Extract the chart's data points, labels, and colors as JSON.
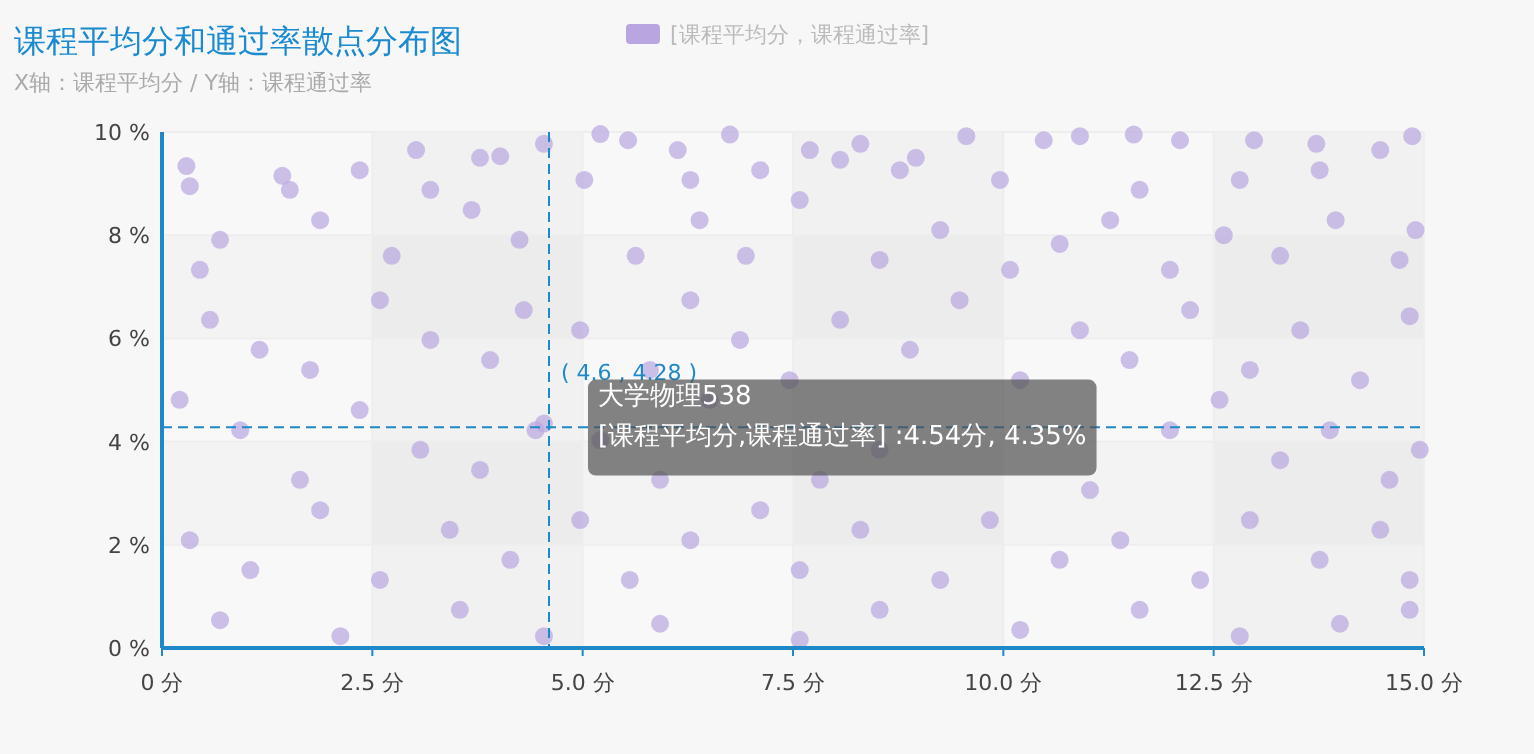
{
  "chart_data": {
    "type": "scatter",
    "title": "课程平均分和通过率散点分布图",
    "subtitle": "X轴：课程平均分 / Y轴：课程通过率",
    "xlim": [
      0,
      15
    ],
    "ylim": [
      0,
      10
    ],
    "xticks": [
      {
        "value": 0,
        "label": "0 分"
      },
      {
        "value": 2.5,
        "label": "2.5 分"
      },
      {
        "value": 5,
        "label": "5.0 分"
      },
      {
        "value": 7.5,
        "label": "7.5 分"
      },
      {
        "value": 10,
        "label": "10.0 分"
      },
      {
        "value": 12.5,
        "label": "12.5 分"
      },
      {
        "value": 15,
        "label": "15.0 分"
      }
    ],
    "yticks": [
      {
        "value": 0,
        "label": "0 %"
      },
      {
        "value": 2,
        "label": "2 %"
      },
      {
        "value": 4,
        "label": "4 %"
      },
      {
        "value": 6,
        "label": "6 %"
      },
      {
        "value": 8,
        "label": "8 %"
      },
      {
        "value": 10,
        "label": "10 %"
      }
    ],
    "grid": true,
    "legend": "top",
    "marker": "circle",
    "ref_lines": [
      {
        "axis": "x",
        "value": 4.6,
        "label": "( 4.6 , 4.28 )",
        "color": "#1e88c8",
        "line_style": "dashed"
      },
      {
        "axis": "y",
        "value": 4.28,
        "label": null,
        "color": "#1e88c8",
        "line_style": "dashed"
      }
    ],
    "annotations": [
      {
        "text": "大学物理538",
        "x": 4.54,
        "y": 4.35
      },
      {
        "text": "[课程平均分,课程通过率] :4.54分, 4.35%",
        "x": 4.54,
        "y": 4.35
      }
    ],
    "series": [
      {
        "name": "[课程平均分，课程通过率]",
        "color": "#b9a6e0",
        "x": [
          0.29,
          1.43,
          3.02,
          3.78,
          4.54,
          5.21,
          5.54,
          6.13,
          6.75,
          7.7,
          8.3,
          8.96,
          9.56,
          10.48,
          10.91,
          11.55,
          12.1,
          12.98,
          13.72,
          14.48,
          14.86,
          13.76,
          12.81,
          11.62,
          9.96,
          8.77,
          8.06,
          7.11,
          6.28,
          5.02,
          4.02,
          3.19,
          2.35,
          1.52,
          0.33,
          0.45,
          0.69,
          1.88,
          2.73,
          3.68,
          4.25,
          5.63,
          6.39,
          6.94,
          7.58,
          8.53,
          9.25,
          10.08,
          10.67,
          11.27,
          11.98,
          12.62,
          13.29,
          13.95,
          14.71,
          14.9,
          0.57,
          1.16,
          1.76,
          2.59,
          3.19,
          3.9,
          4.3,
          4.97,
          5.8,
          6.28,
          6.87,
          7.46,
          8.06,
          8.89,
          9.48,
          10.2,
          10.91,
          11.5,
          12.22,
          12.93,
          13.53,
          14.24,
          14.83,
          0.21,
          0.93,
          1.64,
          2.35,
          3.07,
          3.78,
          4.44,
          5.21,
          5.92,
          6.51,
          7.82,
          8.53,
          null,
          null,
          11.03,
          11.98,
          12.57,
          13.29,
          13.88,
          14.59,
          14.95,
          0.33,
          1.05,
          1.88,
          2.59,
          3.42,
          4.14,
          4.97,
          5.56,
          6.28,
          7.11,
          7.58,
          8.3,
          9.25,
          9.84,
          10.67,
          11.39,
          12.34,
          12.93,
          13.76,
          14.48,
          14.83,
          0.69,
          2.12,
          3.54,
          4.54,
          5.92,
          7.58,
          8.53,
          10.2,
          11.62,
          12.81,
          14.0,
          14.83,
          4.54
        ],
        "values": [
          9.34,
          9.15,
          9.65,
          9.5,
          9.77,
          9.96,
          9.84,
          9.65,
          9.95,
          9.65,
          9.77,
          9.5,
          9.92,
          9.84,
          9.92,
          9.95,
          9.84,
          9.84,
          9.77,
          9.65,
          9.92,
          9.26,
          9.07,
          8.88,
          9.07,
          9.26,
          9.46,
          9.26,
          9.07,
          9.07,
          9.53,
          8.88,
          9.26,
          8.88,
          8.95,
          7.33,
          7.91,
          8.29,
          7.6,
          8.49,
          7.91,
          7.6,
          8.29,
          7.6,
          8.68,
          7.52,
          8.1,
          7.33,
          7.83,
          8.29,
          7.33,
          8.0,
          7.6,
          8.29,
          7.52,
          8.1,
          6.36,
          5.78,
          5.39,
          6.74,
          5.97,
          5.58,
          6.55,
          6.16,
          5.39,
          6.74,
          5.97,
          5.19,
          6.36,
          5.78,
          6.74,
          5.19,
          6.16,
          5.58,
          6.55,
          5.39,
          6.16,
          5.19,
          6.43,
          4.81,
          4.22,
          3.26,
          4.61,
          3.84,
          3.45,
          4.22,
          4.03,
          3.26,
          4.81,
          3.26,
          3.84,
          null,
          null,
          3.06,
          4.22,
          4.81,
          3.64,
          4.22,
          3.26,
          3.84,
          2.09,
          1.51,
          2.67,
          1.32,
          2.29,
          1.71,
          2.48,
          1.32,
          2.09,
          2.67,
          1.51,
          2.29,
          1.32,
          2.48,
          1.71,
          2.09,
          1.32,
          2.48,
          1.71,
          2.29,
          1.32,
          0.54,
          0.23,
          0.74,
          0.23,
          0.47,
          0.16,
          0.74,
          0.35,
          0.74,
          0.23,
          0.47,
          0.74,
          4.35
        ]
      }
    ]
  }
}
